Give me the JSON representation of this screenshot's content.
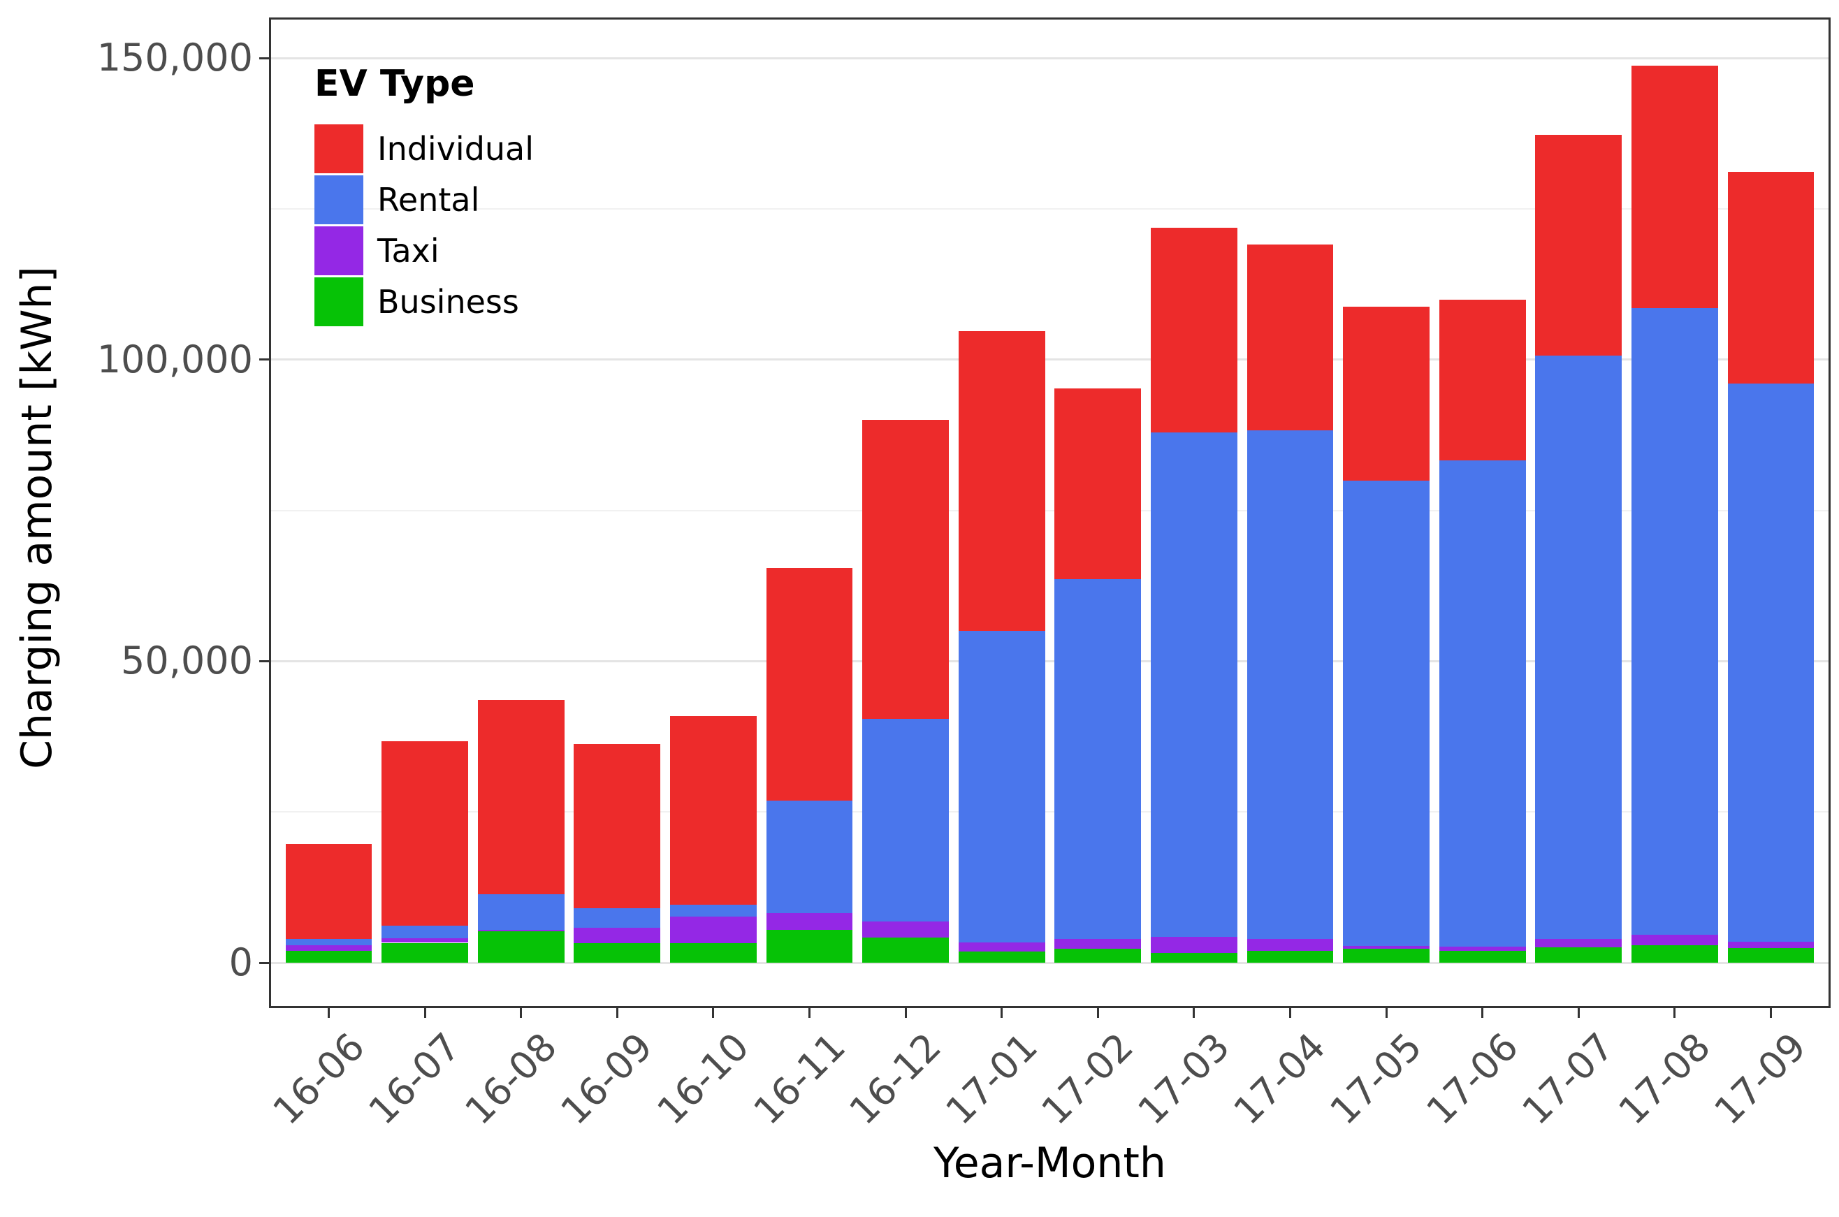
{
  "chart_data": {
    "type": "bar",
    "stacked": true,
    "orientation": "vertical",
    "xlabel": "Year-Month",
    "ylabel": "Charging amount [kWh]",
    "categories": [
      "16-06",
      "16-07",
      "16-08",
      "16-09",
      "16-10",
      "16-11",
      "16-12",
      "17-01",
      "17-02",
      "17-03",
      "17-04",
      "17-05",
      "17-06",
      "17-07",
      "17-08",
      "17-09"
    ],
    "series": [
      {
        "name": "Individual",
        "color": "#ED2B2B",
        "values": [
          15800,
          30600,
          32300,
          27300,
          31300,
          38600,
          49600,
          49700,
          31600,
          33900,
          30800,
          28900,
          26600,
          36600,
          40200,
          35100
        ]
      },
      {
        "name": "Rental",
        "color": "#4A76EC",
        "values": [
          1000,
          2100,
          5800,
          3200,
          1900,
          18700,
          33600,
          51600,
          59700,
          83600,
          84400,
          77100,
          80600,
          96800,
          103900,
          92500
        ]
      },
      {
        "name": "Taxi",
        "color": "#9428E5",
        "values": [
          900,
          700,
          300,
          2600,
          4400,
          2800,
          2600,
          1600,
          1600,
          2700,
          1900,
          500,
          700,
          1300,
          1700,
          1100
        ]
      },
      {
        "name": "Business",
        "color": "#06C206",
        "values": [
          2000,
          3300,
          5200,
          3200,
          3300,
          5400,
          4200,
          1800,
          2300,
          1600,
          2000,
          2300,
          2000,
          2600,
          2900,
          2400
        ]
      }
    ],
    "stack_order_bottom_to_top": [
      "Business",
      "Taxi",
      "Rental",
      "Individual"
    ],
    "totals": [
      19700,
      36700,
      43600,
      36300,
      40900,
      65500,
      90000,
      104700,
      95200,
      121800,
      119100,
      108800,
      109900,
      137300,
      148700,
      131100
    ],
    "ylim": [
      0,
      155000
    ],
    "yticks": [
      0,
      50000,
      100000,
      150000
    ],
    "ytick_labels": [
      "0",
      "50,000",
      "100,000",
      "150,000"
    ],
    "yticks_minor": [
      25000,
      75000,
      125000
    ],
    "grid": true,
    "legend": {
      "title": "EV Type",
      "position": "top-left-inside",
      "entries": [
        "Individual",
        "Rental",
        "Taxi",
        "Business"
      ]
    },
    "colors": {
      "panel_background": "#FFFFFF",
      "panel_border": "#333333",
      "grid_major": "#E4E4E4",
      "grid_minor": "#F1F1F1",
      "tick_label": "#4D4D4D",
      "axis_title": "#000000"
    }
  }
}
